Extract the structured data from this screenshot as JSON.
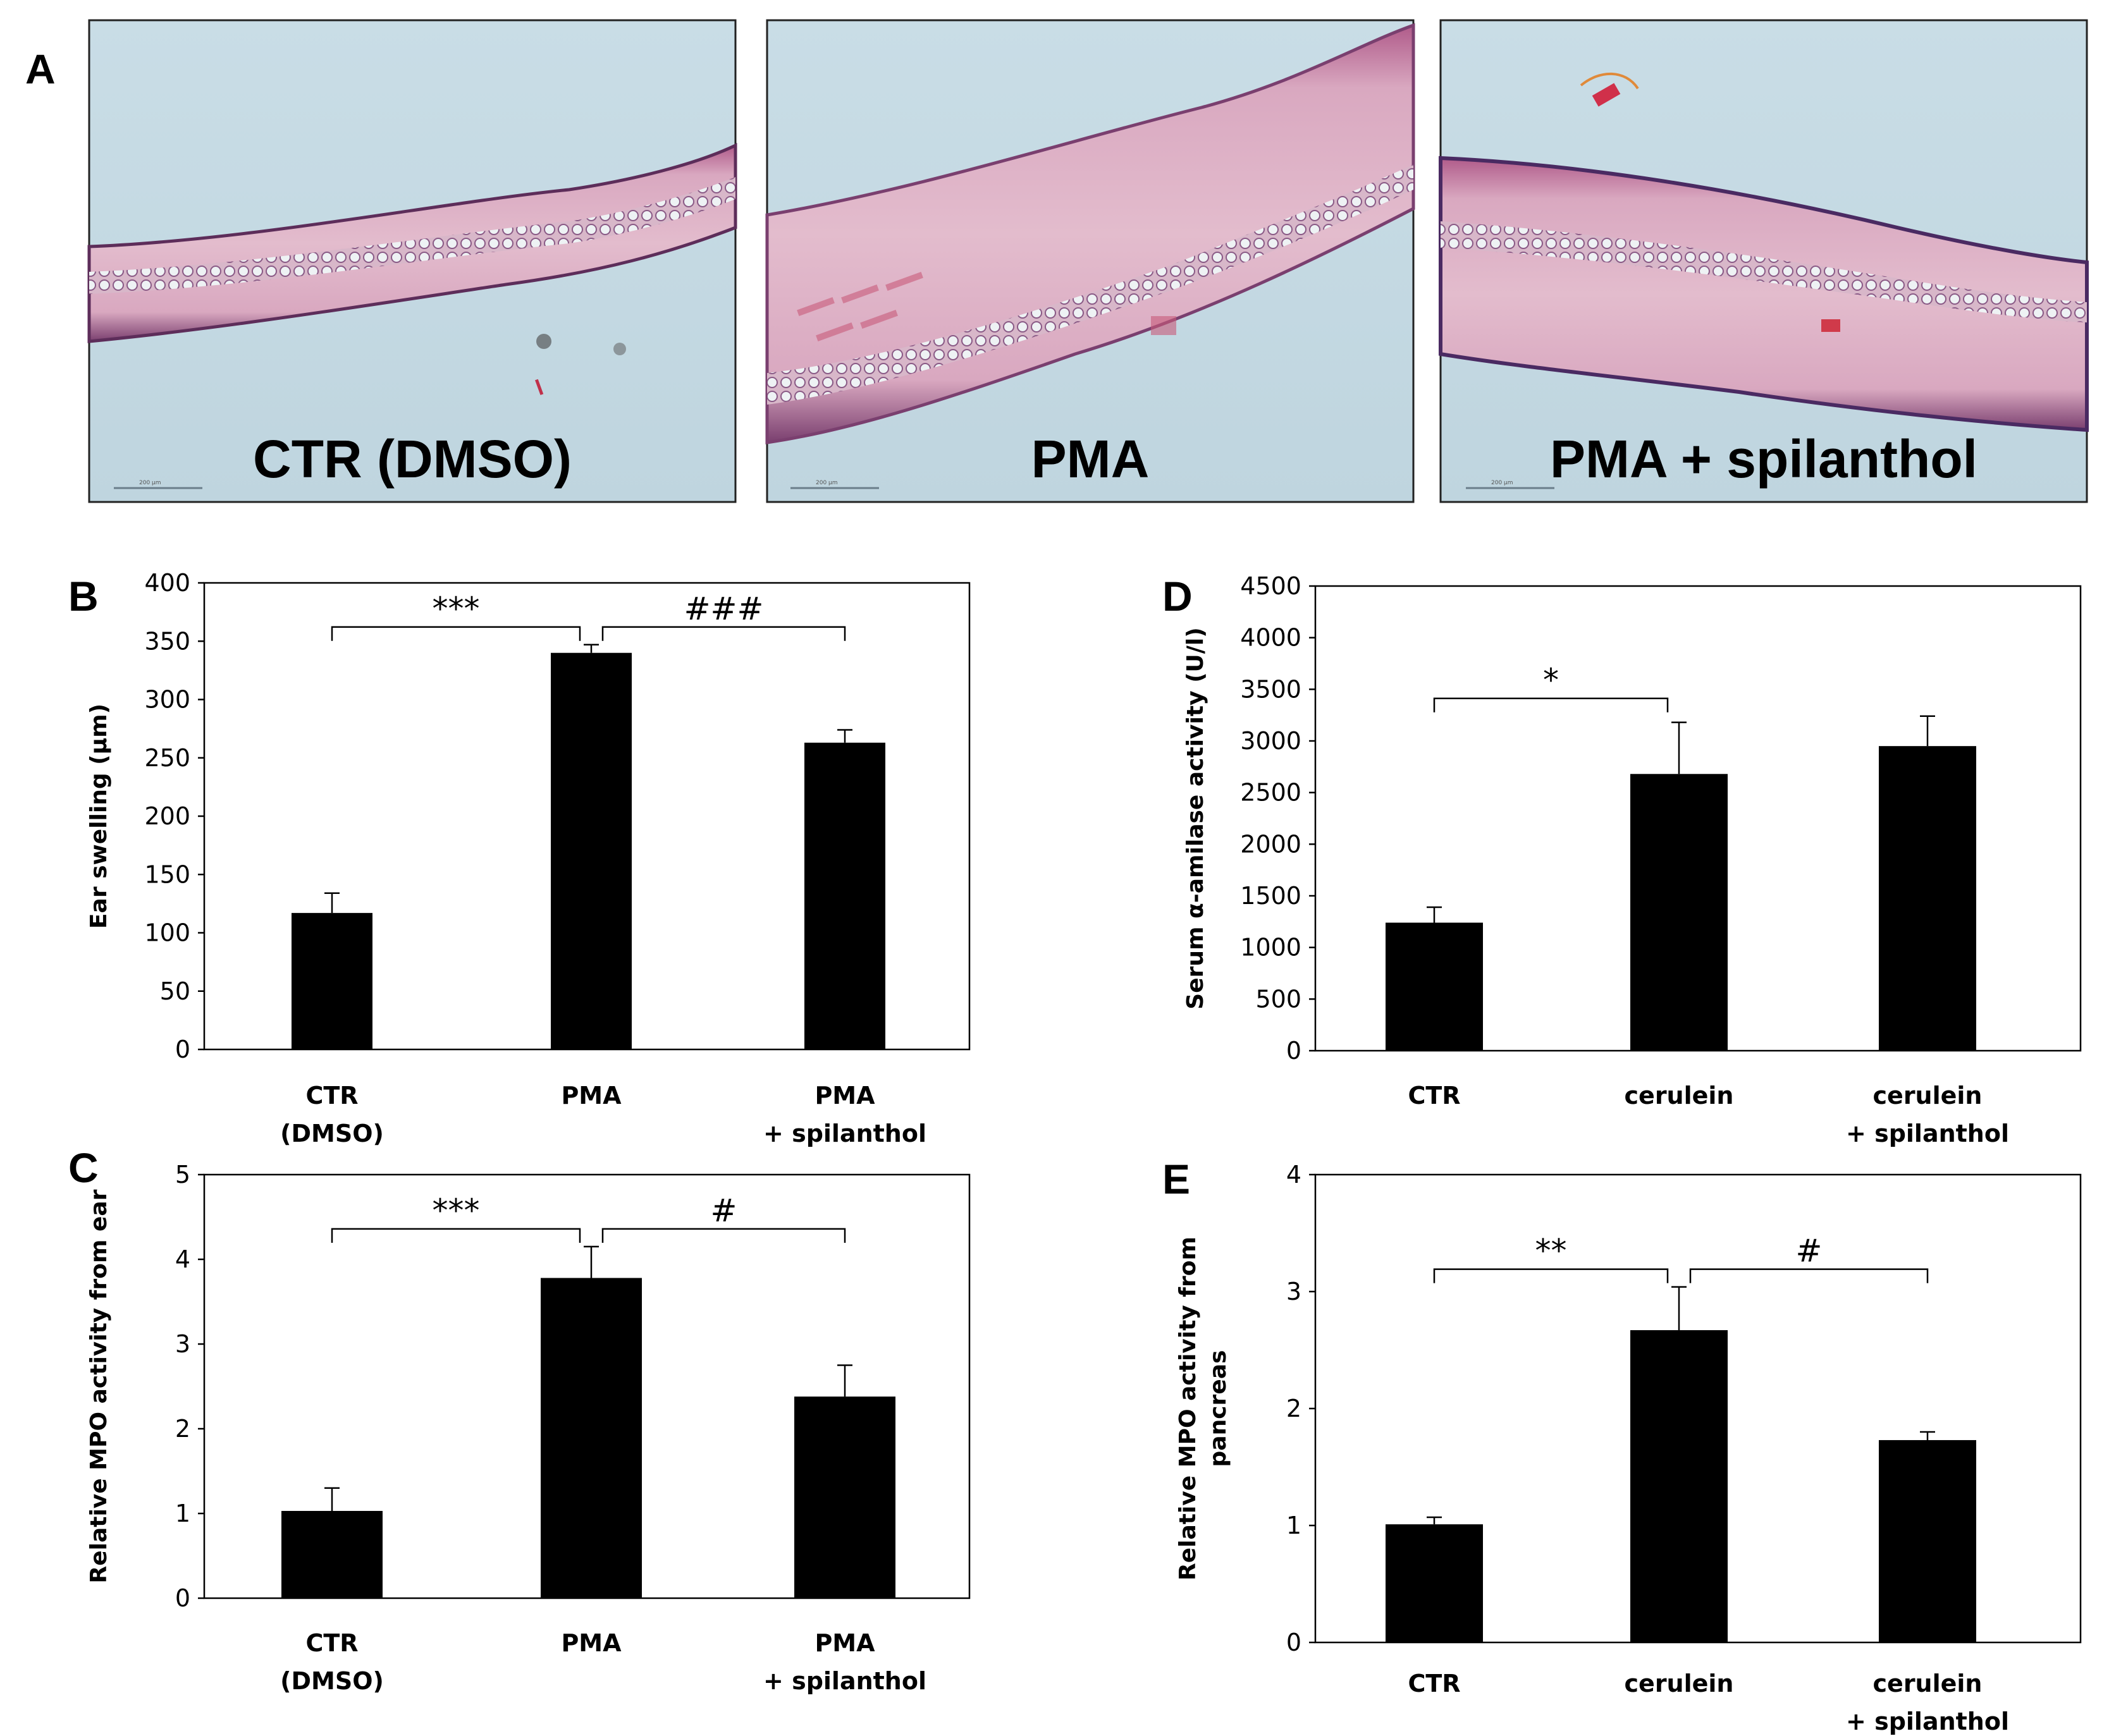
{
  "panel_a": {
    "letter": "A",
    "images": [
      {
        "label": "CTR (DMSO)",
        "scale_text": "200 µm"
      },
      {
        "label": "PMA",
        "scale_text": "200 µm"
      },
      {
        "label": "PMA + spilanthol",
        "scale_text": "200 µm"
      }
    ]
  },
  "chart_data": [
    {
      "id": "B",
      "letter": "B",
      "type": "bar",
      "categories": [
        [
          "CTR",
          "(DMSO)"
        ],
        [
          "PMA",
          ""
        ],
        [
          "PMA",
          "+ spilanthol"
        ]
      ],
      "values": [
        117,
        340,
        263
      ],
      "errors": [
        17,
        7,
        11
      ],
      "ylabel": "Ear swelling (µm)",
      "ylim": [
        0,
        400
      ],
      "ytick_step": 50,
      "significance": [
        {
          "from": 0,
          "to": 1,
          "label": "***"
        },
        {
          "from": 1,
          "to": 2,
          "label": "###"
        }
      ],
      "bar_color": "#000000",
      "grid": false
    },
    {
      "id": "C",
      "letter": "C",
      "type": "bar",
      "categories": [
        [
          "CTR",
          "(DMSO)"
        ],
        [
          "PMA",
          ""
        ],
        [
          "PMA",
          "+ spilanthol"
        ]
      ],
      "values": [
        1.03,
        3.78,
        2.38
      ],
      "errors": [
        0.27,
        0.37,
        0.37
      ],
      "ylabel": "Relative MPO activity from ear",
      "ylim": [
        0,
        5
      ],
      "ytick_step": 1,
      "significance": [
        {
          "from": 0,
          "to": 1,
          "label": "***"
        },
        {
          "from": 1,
          "to": 2,
          "label": "#"
        }
      ],
      "bar_color": "#000000",
      "grid": false
    },
    {
      "id": "D",
      "letter": "D",
      "type": "bar",
      "categories": [
        [
          "CTR",
          ""
        ],
        [
          "cerulein",
          ""
        ],
        [
          "cerulein",
          "+ spilanthol"
        ]
      ],
      "values": [
        1240,
        2680,
        2950
      ],
      "errors": [
        150,
        500,
        290
      ],
      "ylabel": "Serum α-amilase activity (U/l)",
      "ylim": [
        0,
        4500
      ],
      "ytick_step": 500,
      "significance": [
        {
          "from": 0,
          "to": 1,
          "label": "*"
        }
      ],
      "bar_color": "#000000",
      "grid": false
    },
    {
      "id": "E",
      "letter": "E",
      "type": "bar",
      "categories": [
        [
          "CTR",
          ""
        ],
        [
          "cerulein",
          ""
        ],
        [
          "cerulein",
          "+ spilanthol"
        ]
      ],
      "values": [
        1.01,
        2.67,
        1.73
      ],
      "errors": [
        0.06,
        0.37,
        0.07
      ],
      "ylabel": [
        "Relative MPO activity from",
        "pancreas"
      ],
      "ylim": [
        0,
        4
      ],
      "ytick_step": 1,
      "significance": [
        {
          "from": 0,
          "to": 1,
          "label": "**"
        },
        {
          "from": 1,
          "to": 2,
          "label": "#"
        }
      ],
      "bar_color": "#000000",
      "grid": false
    }
  ]
}
